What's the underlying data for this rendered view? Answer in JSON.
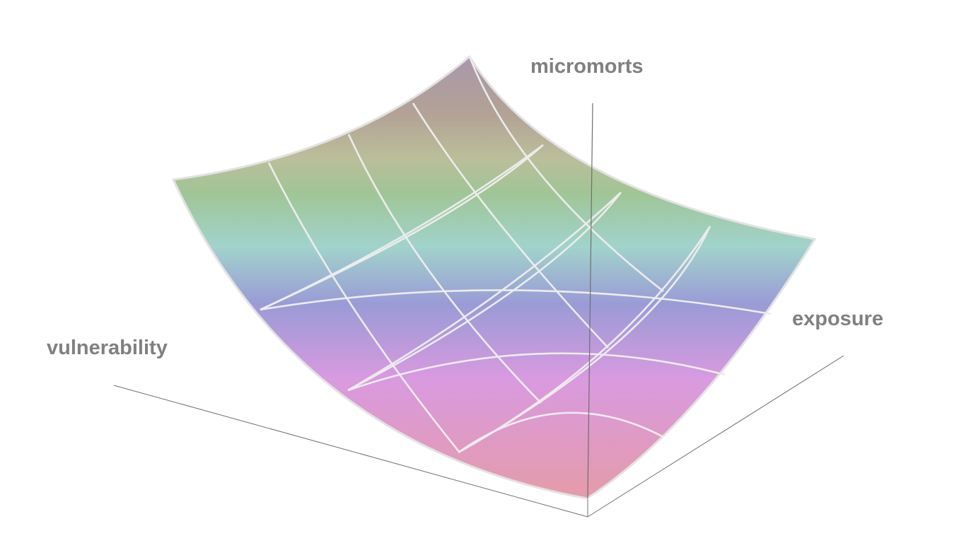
{
  "diagram": {
    "axes": {
      "z_label": "micromorts",
      "x_label": "exposure",
      "y_label": "vulnerability"
    },
    "surface": {
      "shape": "concave-up saddle-like curved surface",
      "grid_divisions": 6,
      "gradient_colors": [
        "#a997ac",
        "#b3a295",
        "#bbbe9a",
        "#9cc896",
        "#a1d8d4",
        "#9b9cd8",
        "#d699e0",
        "#e49db2"
      ]
    },
    "colors": {
      "axis_line": "#707070",
      "label": "#808080",
      "grid_line": "#e6e6e6"
    }
  }
}
